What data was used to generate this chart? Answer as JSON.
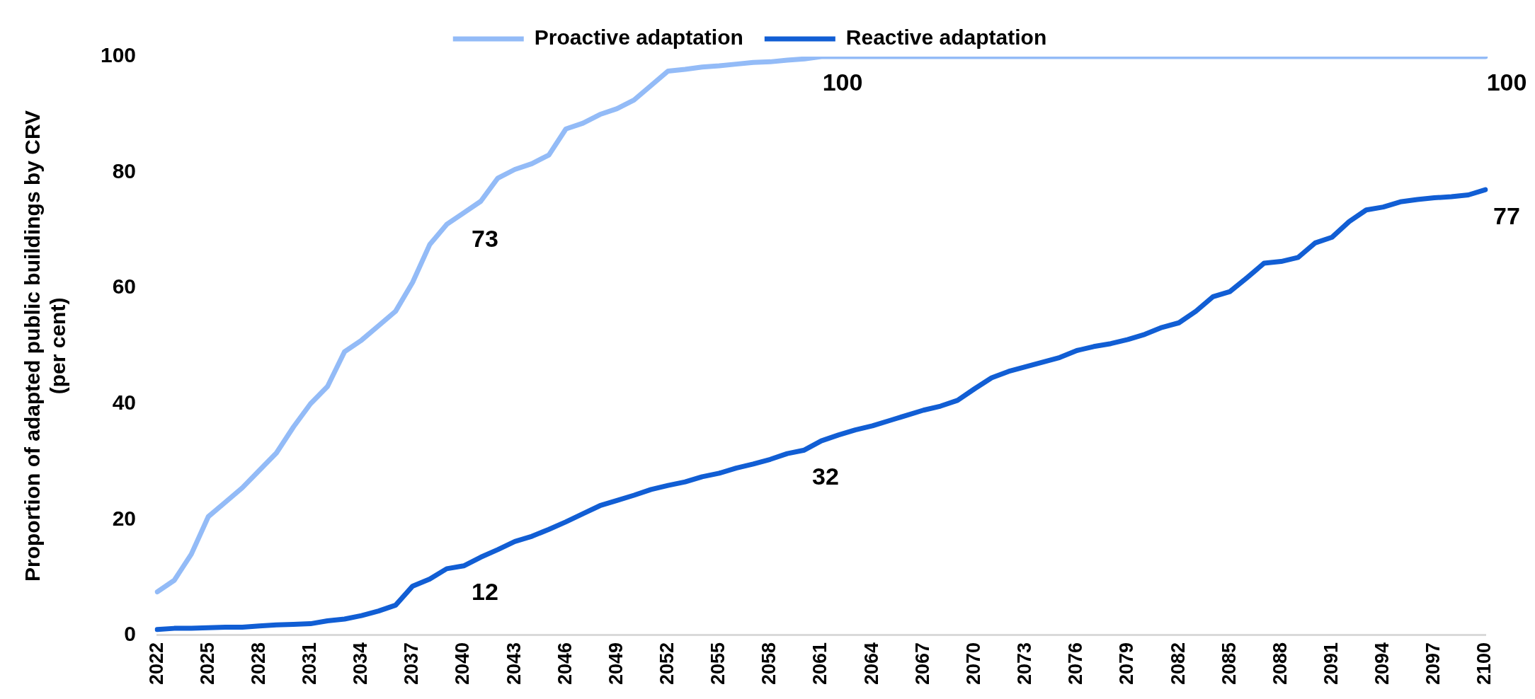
{
  "chart_data": {
    "type": "line",
    "ylabel": "Proportion of adapted public buildings by CRV\n(per cent)",
    "categories": [
      "2022",
      null,
      null,
      "2025",
      null,
      null,
      "2028",
      null,
      null,
      "2031",
      null,
      null,
      "2034",
      null,
      null,
      "2037",
      null,
      null,
      "2040",
      null,
      null,
      "2043",
      null,
      null,
      "2046",
      null,
      null,
      "2049",
      null,
      null,
      "2052",
      null,
      null,
      "2055",
      null,
      null,
      "2058",
      null,
      null,
      "2061",
      null,
      null,
      "2064",
      null,
      null,
      "2067",
      null,
      null,
      "2070",
      null,
      null,
      "2073",
      null,
      null,
      "2076",
      null,
      null,
      "2079",
      null,
      null,
      "2082",
      null,
      null,
      "2085",
      null,
      null,
      "2088",
      null,
      null,
      "2091",
      null,
      null,
      "2094",
      null,
      null,
      "2097",
      null,
      null,
      "2100"
    ],
    "series": [
      {
        "name": "Proactive adaptation",
        "color": "#93bbf7",
        "values": [
          7.5,
          9.5,
          14,
          20.5,
          23,
          25.5,
          28.5,
          31.5,
          36,
          40,
          43,
          49,
          51,
          53.5,
          56,
          61,
          67.5,
          71,
          73,
          75,
          79,
          80.5,
          81.5,
          83,
          87.5,
          88.5,
          90,
          91,
          92.5,
          95,
          97.5,
          97.8,
          98.2,
          98.4,
          98.7,
          99,
          99.1,
          99.4,
          99.6,
          100,
          100,
          100,
          100,
          100,
          100,
          100,
          100,
          100,
          100,
          100,
          100,
          100,
          100,
          100,
          100,
          100,
          100,
          100,
          100,
          100,
          100,
          100,
          100,
          100,
          100,
          100,
          100,
          100,
          100,
          100,
          100,
          100,
          100,
          100,
          100,
          100,
          100,
          100,
          100
        ],
        "value_labels": [
          null,
          null,
          null,
          null,
          null,
          null,
          null,
          null,
          null,
          null,
          null,
          null,
          null,
          null,
          null,
          null,
          null,
          null,
          "73",
          null,
          null,
          null,
          null,
          null,
          null,
          null,
          null,
          null,
          null,
          null,
          null,
          null,
          null,
          null,
          null,
          null,
          null,
          null,
          null,
          "100",
          null,
          null,
          null,
          null,
          null,
          null,
          null,
          null,
          null,
          null,
          null,
          null,
          null,
          null,
          null,
          null,
          null,
          null,
          null,
          null,
          null,
          null,
          null,
          null,
          null,
          null,
          null,
          null,
          null,
          null,
          null,
          null,
          null,
          null,
          null,
          null,
          null,
          null,
          "100"
        ]
      },
      {
        "name": "Reactive adaptation",
        "color": "#115ed4",
        "values": [
          1,
          1.2,
          1.2,
          1.3,
          1.4,
          1.4,
          1.6,
          1.8,
          1.9,
          2,
          2.5,
          2.8,
          3.4,
          4.2,
          5.2,
          8.5,
          9.7,
          11.5,
          12,
          13.5,
          14.8,
          16.2,
          17.1,
          18.3,
          19.6,
          21,
          22.4,
          23.3,
          24.2,
          25.2,
          25.9,
          26.5,
          27.4,
          28,
          28.9,
          29.6,
          30.4,
          31.4,
          32,
          33.6,
          34.6,
          35.5,
          36.2,
          37.1,
          38,
          38.9,
          39.6,
          40.6,
          42.6,
          44.5,
          45.6,
          46.4,
          47.2,
          48,
          49.2,
          49.9,
          50.4,
          51.1,
          52,
          53.2,
          54,
          56,
          58.5,
          59.4,
          61.8,
          64.3,
          64.6,
          65.3,
          67.8,
          68.8,
          71.5,
          73.5,
          74,
          74.9,
          75.3,
          75.6,
          75.8,
          76.1,
          77
        ],
        "value_labels": [
          null,
          null,
          null,
          null,
          null,
          null,
          null,
          null,
          null,
          null,
          null,
          null,
          null,
          null,
          null,
          null,
          null,
          null,
          "12",
          null,
          null,
          null,
          null,
          null,
          null,
          null,
          null,
          null,
          null,
          null,
          null,
          null,
          null,
          null,
          null,
          null,
          null,
          null,
          "32",
          null,
          null,
          null,
          null,
          null,
          null,
          null,
          null,
          null,
          null,
          null,
          null,
          null,
          null,
          null,
          null,
          null,
          null,
          null,
          null,
          null,
          null,
          null,
          null,
          null,
          null,
          null,
          null,
          null,
          null,
          null,
          null,
          null,
          null,
          null,
          null,
          null,
          null,
          null,
          "77"
        ]
      }
    ],
    "ylim": [
      0,
      100
    ],
    "yticks": [
      0,
      20,
      40,
      60,
      80,
      100
    ],
    "grid": false,
    "legend": "top",
    "marker": "none",
    "line_style": "solid"
  }
}
